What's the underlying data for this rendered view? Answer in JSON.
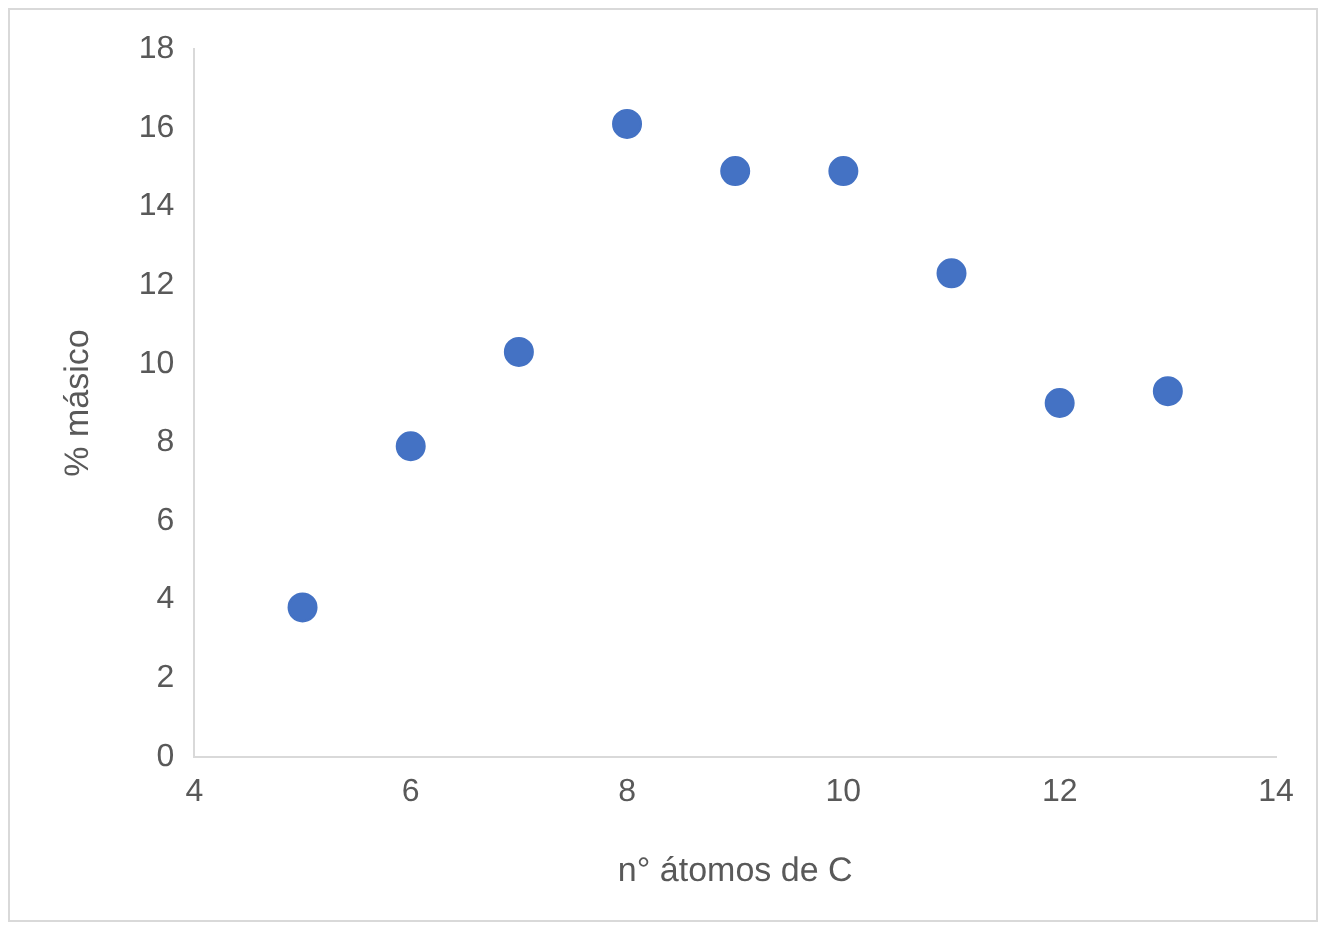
{
  "chart_data": {
    "type": "scatter",
    "xlabel": "n° átomos de C",
    "ylabel": "% másico",
    "x": [
      5,
      6,
      7,
      8,
      9,
      10,
      11,
      12,
      13
    ],
    "series": [
      {
        "color": "#4472c4",
        "values": [
          3.8,
          7.9,
          10.3,
          16.1,
          14.9,
          14.9,
          12.3,
          9.0,
          9.3
        ]
      }
    ],
    "xlim": [
      4,
      14
    ],
    "xticks": [
      4,
      6,
      8,
      10,
      12,
      14
    ],
    "ylim": [
      0,
      18
    ],
    "yticks": [
      0,
      2,
      4,
      6,
      8,
      10,
      12,
      14,
      16,
      18
    ],
    "grid": false,
    "legend": false,
    "marker": "circle"
  }
}
